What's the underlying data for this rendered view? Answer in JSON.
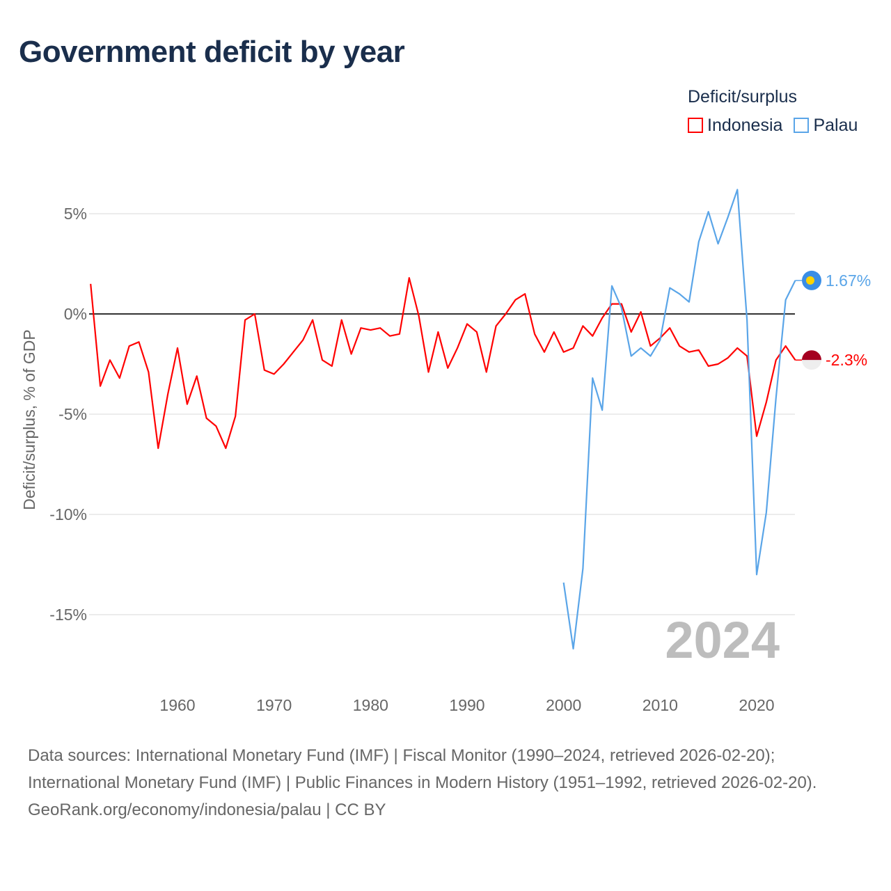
{
  "title": "Government deficit by year",
  "legend": {
    "title": "Deficit/surplus",
    "items": [
      {
        "name": "Indonesia",
        "color": "#ff0000"
      },
      {
        "name": "Palau",
        "color": "#5aa5e8"
      }
    ]
  },
  "watermark_year": "2024",
  "chart_data": {
    "type": "line",
    "title": "Government deficit by year",
    "xlabel": "",
    "ylabel": "Deficit/surplus, % of GDP",
    "xlim": [
      1951,
      2024
    ],
    "ylim": [
      -17.5,
      7
    ],
    "x_ticks": [
      1960,
      1970,
      1980,
      1990,
      2000,
      2010,
      2020
    ],
    "y_ticks": [
      5,
      0,
      -5,
      -10,
      -15
    ],
    "y_tick_labels": [
      "5%",
      "0%",
      "-5%",
      "-10%",
      "-15%"
    ],
    "grid": true,
    "legend_position": "top-right",
    "series": [
      {
        "name": "Indonesia",
        "color": "#ff0000",
        "start_year": 1951,
        "end_label": "-2.3%",
        "values": [
          1.5,
          -3.6,
          -2.3,
          -3.2,
          -1.6,
          -1.4,
          -2.9,
          -6.7,
          -4.0,
          -1.7,
          -4.5,
          -3.1,
          -5.2,
          -5.6,
          -6.7,
          -5.1,
          -0.3,
          0.0,
          -2.8,
          -3.0,
          -2.5,
          -1.9,
          -1.3,
          -0.3,
          -2.3,
          -2.6,
          -0.3,
          -2.0,
          -0.7,
          -0.8,
          -0.7,
          -1.1,
          -1.0,
          1.8,
          -0.1,
          -2.9,
          -0.9,
          -2.7,
          -1.7,
          -0.5,
          -0.9,
          -2.9,
          -0.6,
          0.0,
          0.7,
          1.0,
          -1.0,
          -1.9,
          -0.9,
          -1.9,
          -1.7,
          -0.6,
          -1.1,
          -0.2,
          0.5,
          0.5,
          -0.9,
          0.1,
          -1.6,
          -1.2,
          -0.7,
          -1.6,
          -1.9,
          -1.8,
          -2.6,
          -2.5,
          -2.2,
          -1.7,
          -2.1,
          -6.1,
          -4.4,
          -2.3,
          -1.6,
          -2.3
        ]
      },
      {
        "name": "Palau",
        "color": "#5aa5e8",
        "start_year": 2000,
        "end_label": "1.67%",
        "values": [
          -13.4,
          -16.7,
          -12.7,
          -3.2,
          -4.8,
          1.4,
          0.3,
          -2.1,
          -1.7,
          -2.1,
          -1.3,
          1.3,
          1.0,
          0.6,
          3.6,
          5.1,
          3.5,
          4.8,
          6.2,
          -0.3,
          -13.0,
          -9.9,
          -4.2,
          0.7,
          1.67
        ]
      }
    ]
  },
  "footer": {
    "sources": "Data sources: International Monetary Fund (IMF) | Fiscal Monitor (1990–2024, retrieved 2026-02-20); International Monetary Fund (IMF) | Public Finances in Modern History (1951–1992, retrieved 2026-02-20).",
    "credit": "GeoRank.org/economy/indonesia/palau | CC BY"
  }
}
